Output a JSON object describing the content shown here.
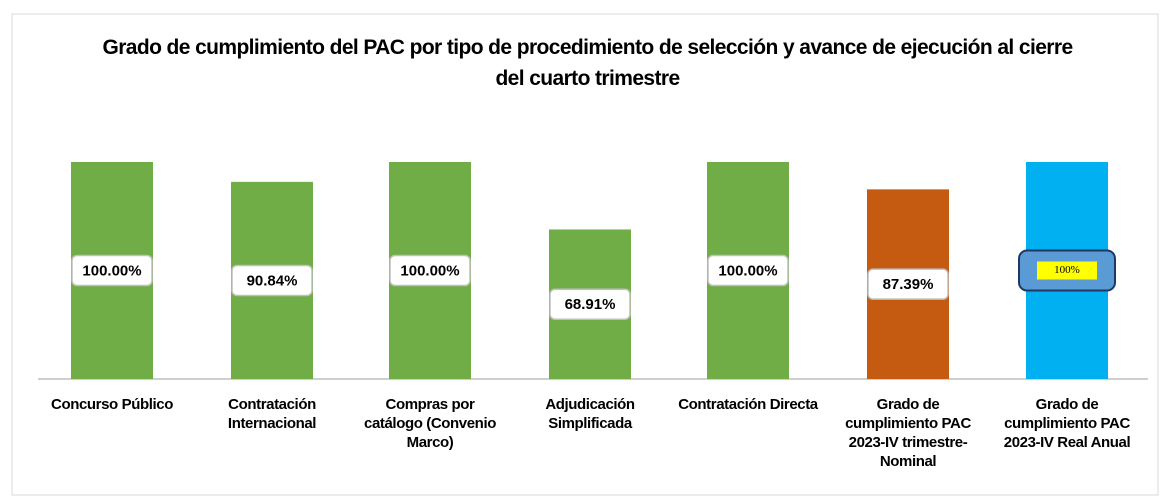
{
  "chart_data": {
    "type": "bar",
    "title": "Grado de cumplimiento del PAC por tipo de procedimiento de selección y avance de ejecución al cierre del cuarto trimestre",
    "categories": [
      "Concurso Público",
      "Contratación Internacional",
      "Compras por catálogo (Convenio Marco)",
      "Adjudicación Simplificada",
      "Contratación Directa",
      "Grado de cumplimiento PAC 2023-IV trimestre- Nominal",
      "Grado de cumplimiento PAC 2023-IV Real Anual"
    ],
    "values": [
      100,
      90.84,
      100,
      68.91,
      100,
      87.39,
      100
    ],
    "value_labels": [
      "100.00%",
      "90.84%",
      "100.00%",
      "68.91%",
      "100.00%",
      "87.39%",
      "100%"
    ],
    "colors": [
      "#70ad47",
      "#70ad47",
      "#70ad47",
      "#70ad47",
      "#70ad47",
      "#c55a11",
      "#00b0f0"
    ],
    "ylim": [
      0,
      100
    ]
  }
}
